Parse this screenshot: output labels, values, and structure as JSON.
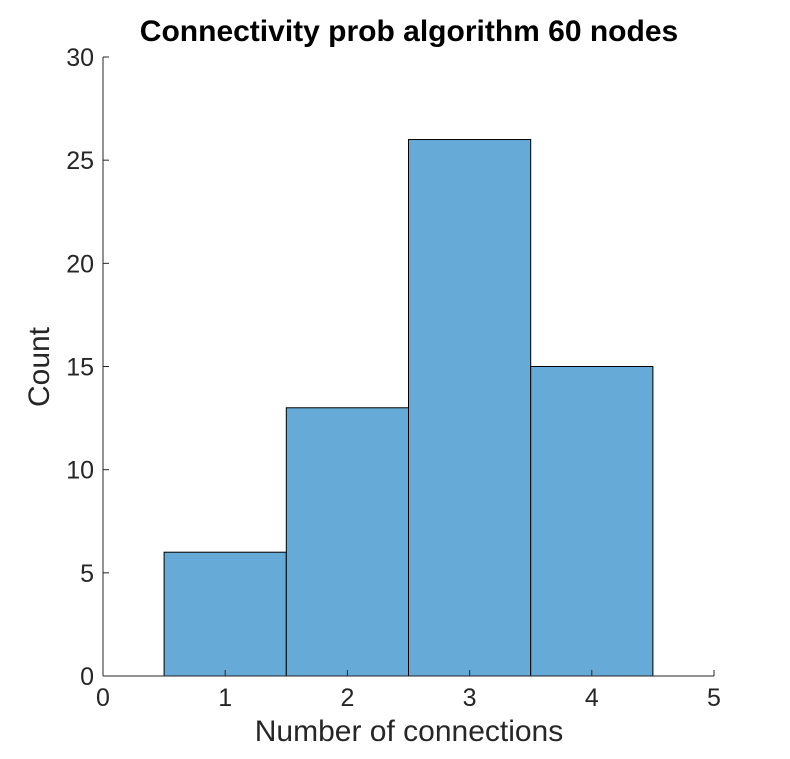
{
  "chart_data": {
    "type": "bar",
    "title": "Connectivity prob algorithm 60 nodes",
    "xlabel": "Number of connections",
    "ylabel": "Count",
    "categories": [
      "1",
      "2",
      "3",
      "4"
    ],
    "x": [
      1,
      2,
      3,
      4
    ],
    "values": [
      6,
      13,
      26,
      15
    ],
    "bin_width": 1,
    "xlim": [
      0,
      5
    ],
    "ylim": [
      0,
      30
    ],
    "xticks": [
      "0",
      "1",
      "2",
      "3",
      "4",
      "5"
    ],
    "yticks": [
      "0",
      "5",
      "10",
      "15",
      "20",
      "25",
      "30"
    ],
    "grid": false,
    "legend": "none",
    "bar_color": "#66aad7",
    "edge_color": "#000000"
  }
}
